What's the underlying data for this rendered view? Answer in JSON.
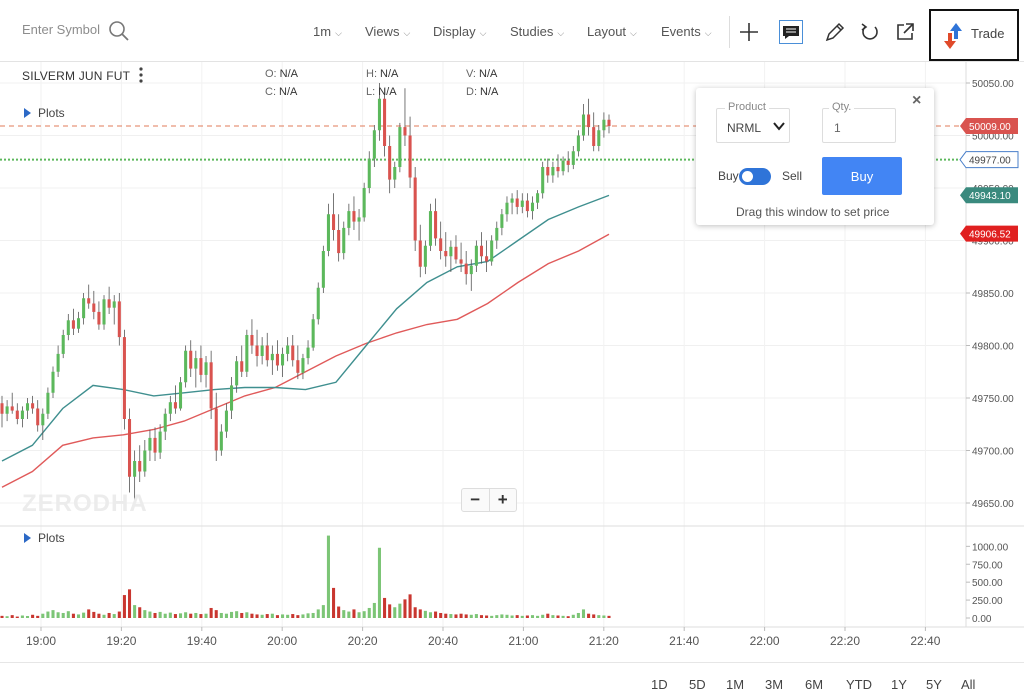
{
  "toolbar": {
    "symbol_placeholder": "Enter Symbol",
    "menus": [
      "1m",
      "Views",
      "Display",
      "Studies",
      "Layout",
      "Events"
    ],
    "trade_label": "Trade"
  },
  "legend": {
    "title": "SILVERM JUN FUT",
    "o_label": "O:",
    "o_value": "N/A",
    "h_label": "H:",
    "h_value": "N/A",
    "v_label": "V:",
    "v_value": "N/A",
    "c_label": "C:",
    "c_value": "N/A",
    "l_label": "L:",
    "l_value": "N/A",
    "d_label": "D:",
    "d_value": "N/A",
    "plots_label": "Plots"
  },
  "volume_panel": {
    "plots_label": "Plots"
  },
  "watermark": "ZERODHA",
  "zoom": {
    "minus": "−",
    "plus": "+"
  },
  "trade_popup": {
    "product_label": "Product",
    "product_value": "NRML",
    "qty_label": "Qty.",
    "qty_value": "1",
    "buy_label": "Buy",
    "sell_label": "Sell",
    "buy_button": "Buy",
    "hint": "Drag this window to set price",
    "close": "×"
  },
  "range_buttons": [
    "1D",
    "5D",
    "1M",
    "3M",
    "6M",
    "YTD",
    "1Y",
    "5Y",
    "All"
  ],
  "colors": {
    "up": "#5cb85c",
    "down": "#d9534f",
    "ma_fast": "#3f8f8f",
    "ma_slow": "#e05a5a",
    "dashed_line": "#e07b5a",
    "dotted_line": "#5cb85c",
    "accent": "#4285f4"
  },
  "chart_data": {
    "type": "candlestick",
    "price_axis": {
      "ticks": [
        "50050.00",
        "50000.00",
        "49950.00",
        "49900.00",
        "49850.00",
        "49800.00",
        "49750.00",
        "49700.00",
        "49650.00"
      ]
    },
    "volume_axis": {
      "ticks": [
        "1000.00",
        "750.00",
        "500.00",
        "250.00",
        "0.00"
      ]
    },
    "time_axis": {
      "ticks": [
        "19:00",
        "19:20",
        "19:40",
        "20:00",
        "20:20",
        "20:40",
        "21:00",
        "21:20",
        "21:40",
        "22:00",
        "22:20",
        "22:40"
      ]
    },
    "price_labels": [
      {
        "value": "50009.00",
        "color": "#d9534f",
        "style": "filled"
      },
      {
        "value": "49977.00",
        "color": "#4a7fc9",
        "style": "outline"
      },
      {
        "value": "49943.10",
        "color": "#3a8a7e",
        "style": "filled"
      },
      {
        "value": "49906.52",
        "color": "#e02020",
        "style": "filled"
      }
    ],
    "ohlc": [
      [
        49745,
        49752,
        49722,
        49735
      ],
      [
        49735,
        49748,
        49728,
        49742
      ],
      [
        49742,
        49755,
        49735,
        49738
      ],
      [
        49738,
        49745,
        49725,
        49730
      ],
      [
        49730,
        49742,
        49722,
        49738
      ],
      [
        49738,
        49750,
        49730,
        49745
      ],
      [
        49745,
        49752,
        49735,
        49740
      ],
      [
        49740,
        49748,
        49718,
        49724
      ],
      [
        49724,
        49740,
        49710,
        49735
      ],
      [
        49735,
        49760,
        49730,
        49755
      ],
      [
        49755,
        49780,
        49750,
        49775
      ],
      [
        49775,
        49800,
        49770,
        49792
      ],
      [
        49792,
        49815,
        49788,
        49810
      ],
      [
        49810,
        49830,
        49805,
        49824
      ],
      [
        49824,
        49835,
        49810,
        49816
      ],
      [
        49816,
        49832,
        49812,
        49826
      ],
      [
        49826,
        49850,
        49820,
        49845
      ],
      [
        49845,
        49858,
        49835,
        49840
      ],
      [
        49840,
        49852,
        49825,
        49832
      ],
      [
        49832,
        49842,
        49815,
        49820
      ],
      [
        49820,
        49848,
        49815,
        49844
      ],
      [
        49844,
        49856,
        49830,
        49836
      ],
      [
        49836,
        49848,
        49820,
        49842
      ],
      [
        49842,
        49850,
        49800,
        49808
      ],
      [
        49808,
        49815,
        49720,
        49730
      ],
      [
        49730,
        49740,
        49660,
        49675
      ],
      [
        49675,
        49700,
        49650,
        49690
      ],
      [
        49690,
        49705,
        49670,
        49680
      ],
      [
        49680,
        49710,
        49675,
        49700
      ],
      [
        49700,
        49720,
        49690,
        49712
      ],
      [
        49712,
        49722,
        49690,
        49698
      ],
      [
        49698,
        49725,
        49692,
        49718
      ],
      [
        49718,
        49740,
        49710,
        49735
      ],
      [
        49735,
        49752,
        49728,
        49746
      ],
      [
        49746,
        49762,
        49735,
        49740
      ],
      [
        49740,
        49770,
        49738,
        49765
      ],
      [
        49765,
        49800,
        49760,
        49795
      ],
      [
        49795,
        49805,
        49770,
        49778
      ],
      [
        49778,
        49795,
        49760,
        49788
      ],
      [
        49788,
        49800,
        49765,
        49772
      ],
      [
        49772,
        49790,
        49760,
        49784
      ],
      [
        49784,
        49795,
        49730,
        49740
      ],
      [
        49740,
        49755,
        49690,
        49700
      ],
      [
        49700,
        49725,
        49695,
        49718
      ],
      [
        49718,
        49745,
        49712,
        49738
      ],
      [
        49738,
        49770,
        49730,
        49762
      ],
      [
        49762,
        49790,
        49755,
        49785
      ],
      [
        49785,
        49800,
        49770,
        49775
      ],
      [
        49775,
        49815,
        49770,
        49810
      ],
      [
        49810,
        49825,
        49792,
        49800
      ],
      [
        49800,
        49815,
        49780,
        49790
      ],
      [
        49790,
        49808,
        49782,
        49800
      ],
      [
        49800,
        49812,
        49780,
        49786
      ],
      [
        49786,
        49800,
        49772,
        49792
      ],
      [
        49792,
        49805,
        49776,
        49781
      ],
      [
        49781,
        49798,
        49770,
        49792
      ],
      [
        49792,
        49808,
        49785,
        49800
      ],
      [
        49800,
        49810,
        49780,
        49786
      ],
      [
        49786,
        49800,
        49768,
        49774
      ],
      [
        49774,
        49792,
        49768,
        49788
      ],
      [
        49788,
        49805,
        49782,
        49798
      ],
      [
        49798,
        49830,
        49795,
        49825
      ],
      [
        49825,
        49860,
        49820,
        49855
      ],
      [
        49855,
        49895,
        49850,
        49890
      ],
      [
        49890,
        49935,
        49885,
        49925
      ],
      [
        49925,
        49945,
        49900,
        49910
      ],
      [
        49910,
        49925,
        49880,
        49888
      ],
      [
        49888,
        49918,
        49882,
        49912
      ],
      [
        49912,
        49935,
        49905,
        49928
      ],
      [
        49928,
        49942,
        49910,
        49918
      ],
      [
        49918,
        49930,
        49900,
        49922
      ],
      [
        49922,
        49955,
        49918,
        49950
      ],
      [
        49950,
        49985,
        49945,
        49978
      ],
      [
        49978,
        50010,
        49970,
        50005
      ],
      [
        50005,
        50050,
        49995,
        50035
      ],
      [
        50035,
        50045,
        49980,
        49990
      ],
      [
        49990,
        50000,
        49945,
        49958
      ],
      [
        49958,
        49975,
        49950,
        49970
      ],
      [
        49970,
        50012,
        49965,
        50008
      ],
      [
        50008,
        50045,
        49990,
        50000
      ],
      [
        50000,
        50018,
        49950,
        49960
      ],
      [
        49960,
        49970,
        49890,
        49900
      ],
      [
        49900,
        49915,
        49865,
        49875
      ],
      [
        49875,
        49900,
        49868,
        49895
      ],
      [
        49895,
        49935,
        49890,
        49928
      ],
      [
        49928,
        49940,
        49895,
        49902
      ],
      [
        49902,
        49918,
        49882,
        49890
      ],
      [
        49890,
        49908,
        49875,
        49885
      ],
      [
        49885,
        49900,
        49870,
        49894
      ],
      [
        49894,
        49905,
        49878,
        49882
      ],
      [
        49882,
        49898,
        49870,
        49878
      ],
      [
        49878,
        49890,
        49858,
        49868
      ],
      [
        49868,
        49882,
        49852,
        49876
      ],
      [
        49876,
        49900,
        49870,
        49895
      ],
      [
        49895,
        49908,
        49878,
        49885
      ],
      [
        49885,
        49900,
        49870,
        49880
      ],
      [
        49880,
        49905,
        49876,
        49900
      ],
      [
        49900,
        49918,
        49892,
        49912
      ],
      [
        49912,
        49930,
        49905,
        49925
      ],
      [
        49925,
        49942,
        49918,
        49936
      ],
      [
        49936,
        49945,
        49925,
        49940
      ],
      [
        49940,
        49948,
        49925,
        49932
      ],
      [
        49932,
        49945,
        49926,
        49938
      ],
      [
        49938,
        49945,
        49922,
        49928
      ],
      [
        49928,
        49942,
        49920,
        49936
      ],
      [
        49936,
        49948,
        49930,
        49945
      ],
      [
        49945,
        49975,
        49940,
        49970
      ],
      [
        49970,
        49978,
        49955,
        49962
      ],
      [
        49962,
        49975,
        49955,
        49970
      ],
      [
        49970,
        49982,
        49960,
        49966
      ],
      [
        49966,
        49980,
        49962,
        49976
      ],
      [
        49976,
        49985,
        49965,
        49972
      ],
      [
        49972,
        49990,
        49968,
        49985
      ],
      [
        49985,
        50005,
        49980,
        50000
      ],
      [
        50000,
        50030,
        49995,
        50020
      ],
      [
        50020,
        50035,
        50000,
        50008
      ],
      [
        50008,
        50022,
        49985,
        49990
      ],
      [
        49990,
        50010,
        49985,
        50005
      ],
      [
        50005,
        50022,
        49998,
        50015
      ],
      [
        50015,
        50020,
        50002,
        50009
      ]
    ],
    "volume": [
      30,
      25,
      40,
      20,
      35,
      28,
      45,
      30,
      60,
      90,
      110,
      80,
      70,
      95,
      60,
      50,
      75,
      120,
      85,
      60,
      45,
      70,
      55,
      90,
      320,
      400,
      180,
      150,
      110,
      90,
      70,
      85,
      60,
      75,
      55,
      65,
      80,
      60,
      70,
      55,
      60,
      140,
      110,
      70,
      60,
      85,
      95,
      70,
      80,
      60,
      50,
      45,
      55,
      60,
      40,
      50,
      45,
      55,
      40,
      50,
      65,
      70,
      120,
      180,
      1150,
      420,
      160,
      110,
      90,
      120,
      80,
      95,
      140,
      210,
      980,
      280,
      190,
      150,
      200,
      260,
      330,
      150,
      120,
      100,
      80,
      90,
      70,
      60,
      55,
      50,
      60,
      50,
      45,
      55,
      40,
      35,
      30,
      40,
      50,
      45,
      35,
      40,
      30,
      35,
      40,
      30,
      45,
      60,
      40,
      35,
      30,
      25,
      45,
      70,
      120,
      60,
      50,
      40,
      35,
      30
    ],
    "ma_fast": [
      [
        0,
        49690
      ],
      [
        0.05,
        49705
      ],
      [
        0.1,
        49740
      ],
      [
        0.15,
        49762
      ],
      [
        0.2,
        49758
      ],
      [
        0.25,
        49752
      ],
      [
        0.3,
        49755
      ],
      [
        0.35,
        49758
      ],
      [
        0.4,
        49760
      ],
      [
        0.45,
        49760
      ],
      [
        0.5,
        49758
      ],
      [
        0.55,
        49765
      ],
      [
        0.6,
        49800
      ],
      [
        0.65,
        49835
      ],
      [
        0.7,
        49860
      ],
      [
        0.75,
        49875
      ],
      [
        0.8,
        49880
      ],
      [
        0.85,
        49900
      ],
      [
        0.9,
        49920
      ],
      [
        0.95,
        49932
      ],
      [
        1.0,
        49943
      ]
    ],
    "ma_slow": [
      [
        0,
        49665
      ],
      [
        0.05,
        49680
      ],
      [
        0.1,
        49705
      ],
      [
        0.15,
        49712
      ],
      [
        0.2,
        49715
      ],
      [
        0.25,
        49720
      ],
      [
        0.3,
        49728
      ],
      [
        0.35,
        49740
      ],
      [
        0.4,
        49752
      ],
      [
        0.45,
        49760
      ],
      [
        0.5,
        49775
      ],
      [
        0.55,
        49790
      ],
      [
        0.6,
        49802
      ],
      [
        0.65,
        49812
      ],
      [
        0.7,
        49820
      ],
      [
        0.75,
        49825
      ],
      [
        0.8,
        49840
      ],
      [
        0.85,
        49860
      ],
      [
        0.9,
        49878
      ],
      [
        0.95,
        49890
      ],
      [
        1.0,
        49906
      ]
    ],
    "horizontal_lines": [
      {
        "value": 50009,
        "style": "dashed"
      },
      {
        "value": 49977,
        "style": "dotted"
      }
    ]
  }
}
